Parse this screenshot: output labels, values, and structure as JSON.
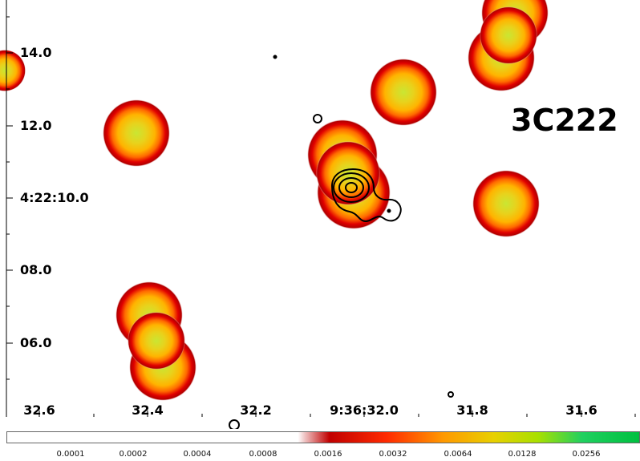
{
  "title": "3C222",
  "axes": {
    "y_ticks": [
      "14.0",
      "12.0",
      "4:22:10.0",
      "08.0",
      "06.0"
    ],
    "x_ticks": [
      "32.6",
      "32.4",
      "32.2",
      "9:36:32.0",
      "31.8",
      "31.6"
    ]
  },
  "colorbar": {
    "labels": [
      "0.0001",
      "0.0002",
      "0.0004",
      "0.0008",
      "0.0016",
      "0.0032",
      "0.0064",
      "0.0128",
      "0.0256"
    ],
    "colors": [
      "#ffffff",
      "#c00000",
      "#ff2a00",
      "#ff9900",
      "#e8d000",
      "#a8e000",
      "#20d060",
      "#00c040"
    ]
  },
  "colors": {
    "core_light": "#c9e633",
    "core_mid": "#e8d21c",
    "ring_orange": "#ff9a00",
    "ring_red": "#e00000",
    "contour": "#000000"
  }
}
